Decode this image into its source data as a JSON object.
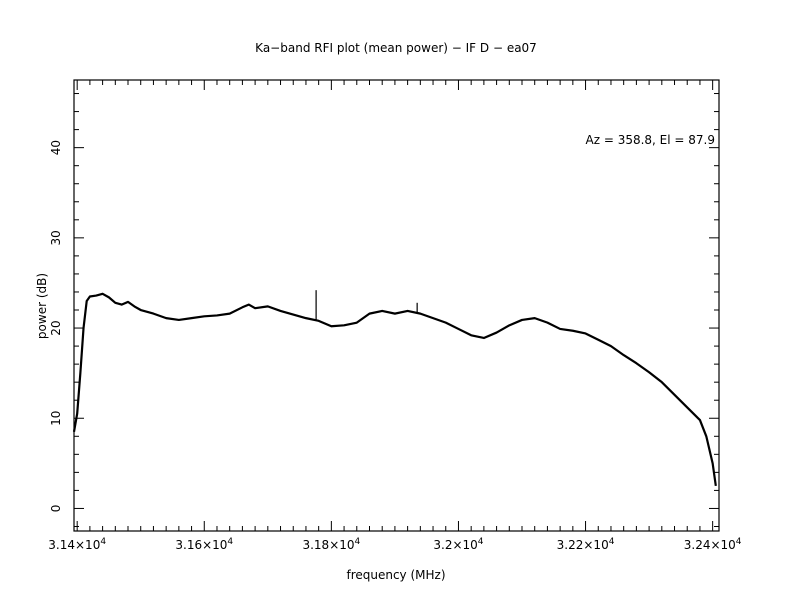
{
  "chart_data": {
    "type": "line",
    "title": "Ka−band RFI plot (mean power) − IF D − ea07",
    "xlabel": "frequency (MHz)",
    "ylabel": "power (dB)",
    "annotation": "Az = 358.8, El = 87.9",
    "xlim": [
      31395,
      32410
    ],
    "ylim": [
      -2.5,
      47.5
    ],
    "x_ticks": [
      {
        "value": 31400,
        "mantissa": "3.14",
        "exponent": "4"
      },
      {
        "value": 31600,
        "mantissa": "3.16",
        "exponent": "4"
      },
      {
        "value": 31800,
        "mantissa": "3.18",
        "exponent": "4"
      },
      {
        "value": 32000,
        "mantissa": "3.2",
        "exponent": "4"
      },
      {
        "value": 32200,
        "mantissa": "3.22",
        "exponent": "4"
      },
      {
        "value": 32400,
        "mantissa": "3.24",
        "exponent": "4"
      }
    ],
    "y_ticks": [
      0,
      10,
      20,
      30,
      40
    ],
    "line_color": "#000000",
    "series": [
      {
        "points": [
          [
            31395,
            8.5
          ],
          [
            31400,
            10.5
          ],
          [
            31405,
            15
          ],
          [
            31410,
            20
          ],
          [
            31415,
            23
          ],
          [
            31420,
            23.5
          ],
          [
            31430,
            23.6
          ],
          [
            31440,
            23.8
          ],
          [
            31450,
            23.4
          ],
          [
            31460,
            22.8
          ],
          [
            31470,
            22.6
          ],
          [
            31480,
            22.9
          ],
          [
            31490,
            22.4
          ],
          [
            31500,
            22.0
          ],
          [
            31520,
            21.6
          ],
          [
            31540,
            21.1
          ],
          [
            31560,
            20.9
          ],
          [
            31580,
            21.1
          ],
          [
            31600,
            21.3
          ],
          [
            31620,
            21.4
          ],
          [
            31640,
            21.6
          ],
          [
            31660,
            22.3
          ],
          [
            31670,
            22.6
          ],
          [
            31680,
            22.2
          ],
          [
            31700,
            22.4
          ],
          [
            31720,
            21.9
          ],
          [
            31740,
            21.5
          ],
          [
            31760,
            21.1
          ],
          [
            31780,
            20.8
          ],
          [
            31800,
            20.2
          ],
          [
            31820,
            20.3
          ],
          [
            31840,
            20.6
          ],
          [
            31860,
            21.6
          ],
          [
            31880,
            21.9
          ],
          [
            31900,
            21.6
          ],
          [
            31920,
            21.9
          ],
          [
            31940,
            21.6
          ],
          [
            31960,
            21.1
          ],
          [
            31980,
            20.6
          ],
          [
            32000,
            19.9
          ],
          [
            32020,
            19.2
          ],
          [
            32040,
            18.9
          ],
          [
            32060,
            19.5
          ],
          [
            32080,
            20.3
          ],
          [
            32100,
            20.9
          ],
          [
            32120,
            21.1
          ],
          [
            32140,
            20.6
          ],
          [
            32160,
            19.9
          ],
          [
            32180,
            19.7
          ],
          [
            32200,
            19.4
          ],
          [
            32220,
            18.7
          ],
          [
            32240,
            18.0
          ],
          [
            32260,
            17.0
          ],
          [
            32280,
            16.1
          ],
          [
            32300,
            15.1
          ],
          [
            32320,
            14.0
          ],
          [
            32340,
            12.6
          ],
          [
            32360,
            11.2
          ],
          [
            32380,
            9.8
          ],
          [
            32390,
            8.0
          ],
          [
            32400,
            5.0
          ],
          [
            32405,
            2.5
          ]
        ]
      }
    ],
    "spikes": [
      {
        "x": 31776,
        "y": 24.2
      },
      {
        "x": 31935,
        "y": 22.8
      }
    ],
    "grid": false
  }
}
